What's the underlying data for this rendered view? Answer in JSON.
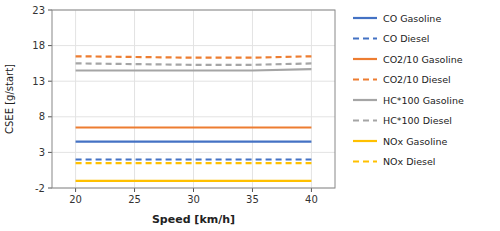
{
  "chart_data": {
    "type": "line",
    "xlabel": "Speed [km/h]",
    "ylabel": "CSEE [g/start]",
    "x": [
      20,
      25,
      30,
      35,
      40
    ],
    "series": [
      {
        "name": "CO Gasoline",
        "color": "#4472C4",
        "line_style": "solid",
        "values": [
          4.5,
          4.5,
          4.5,
          4.5,
          4.5
        ]
      },
      {
        "name": "CO Diesel",
        "color": "#4472C4",
        "line_style": "dashed",
        "values": [
          2.0,
          2.0,
          2.0,
          2.0,
          2.0
        ]
      },
      {
        "name": "CO2/10 Gasoline",
        "color": "#ED7D31",
        "line_style": "solid",
        "values": [
          6.5,
          6.5,
          6.5,
          6.5,
          6.5
        ]
      },
      {
        "name": "CO2/10 Diesel",
        "color": "#ED7D31",
        "line_style": "dashed",
        "values": [
          16.5,
          16.4,
          16.3,
          16.3,
          16.5
        ]
      },
      {
        "name": "HC*100 Gasoline",
        "color": "#A5A5A5",
        "line_style": "solid",
        "values": [
          14.5,
          14.5,
          14.5,
          14.5,
          14.7
        ]
      },
      {
        "name": "HC*100 Diesel",
        "color": "#A5A5A5",
        "line_style": "dashed",
        "values": [
          15.5,
          15.4,
          15.3,
          15.3,
          15.5
        ]
      },
      {
        "name": "NOx Gasoline",
        "color": "#FFC000",
        "line_style": "solid",
        "values": [
          -1.0,
          -1.0,
          -1.0,
          -1.0,
          -1.0
        ]
      },
      {
        "name": "NOx Diesel",
        "color": "#FFC000",
        "line_style": "dashed",
        "values": [
          1.5,
          1.5,
          1.5,
          1.5,
          1.5
        ]
      }
    ],
    "xlim": [
      18,
      42
    ],
    "xticks": [
      20,
      25,
      30,
      35,
      40
    ],
    "ylim": [
      -2,
      23
    ],
    "yticks": [
      -2,
      3,
      8,
      13,
      18,
      23
    ],
    "grid": true,
    "legend": "right"
  }
}
